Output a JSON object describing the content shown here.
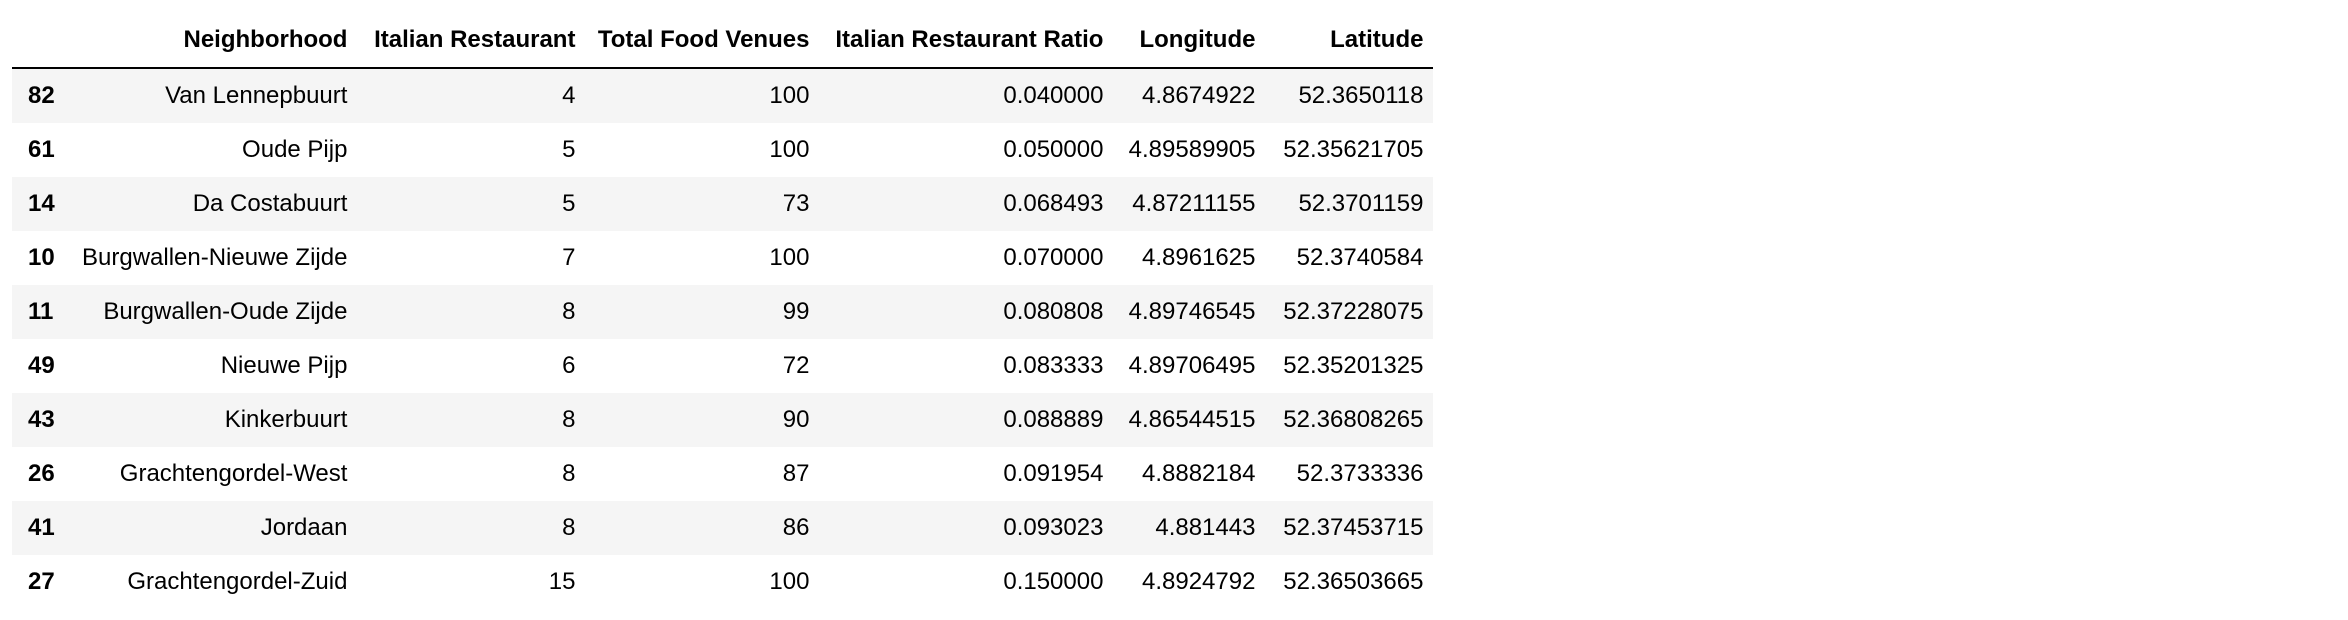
{
  "table": {
    "columns": [
      "",
      "Neighborhood",
      "Italian Restaurant",
      "Total Food Venues",
      "Italian Restaurant Ratio",
      "Longitude",
      "Latitude"
    ],
    "rows": [
      {
        "index": "82",
        "neighborhood": "Van Lennepbuurt",
        "italian": "4",
        "total": "100",
        "ratio": "0.040000",
        "longitude": "4.8674922",
        "latitude": "52.3650118"
      },
      {
        "index": "61",
        "neighborhood": "Oude Pijp",
        "italian": "5",
        "total": "100",
        "ratio": "0.050000",
        "longitude": "4.89589905",
        "latitude": "52.35621705"
      },
      {
        "index": "14",
        "neighborhood": "Da Costabuurt",
        "italian": "5",
        "total": "73",
        "ratio": "0.068493",
        "longitude": "4.87211155",
        "latitude": "52.3701159"
      },
      {
        "index": "10",
        "neighborhood": "Burgwallen-Nieuwe Zijde",
        "italian": "7",
        "total": "100",
        "ratio": "0.070000",
        "longitude": "4.8961625",
        "latitude": "52.3740584"
      },
      {
        "index": "11",
        "neighborhood": "Burgwallen-Oude Zijde",
        "italian": "8",
        "total": "99",
        "ratio": "0.080808",
        "longitude": "4.89746545",
        "latitude": "52.37228075"
      },
      {
        "index": "49",
        "neighborhood": "Nieuwe Pijp",
        "italian": "6",
        "total": "72",
        "ratio": "0.083333",
        "longitude": "4.89706495",
        "latitude": "52.35201325"
      },
      {
        "index": "43",
        "neighborhood": "Kinkerbuurt",
        "italian": "8",
        "total": "90",
        "ratio": "0.088889",
        "longitude": "4.86544515",
        "latitude": "52.36808265"
      },
      {
        "index": "26",
        "neighborhood": "Grachtengordel-West",
        "italian": "8",
        "total": "87",
        "ratio": "0.091954",
        "longitude": "4.8882184",
        "latitude": "52.3733336"
      },
      {
        "index": "41",
        "neighborhood": "Jordaan",
        "italian": "8",
        "total": "86",
        "ratio": "0.093023",
        "longitude": "4.881443",
        "latitude": "52.37453715"
      },
      {
        "index": "27",
        "neighborhood": "Grachtengordel-Zuid",
        "italian": "15",
        "total": "100",
        "ratio": "0.150000",
        "longitude": "4.8924792",
        "latitude": "52.36503665"
      }
    ]
  }
}
